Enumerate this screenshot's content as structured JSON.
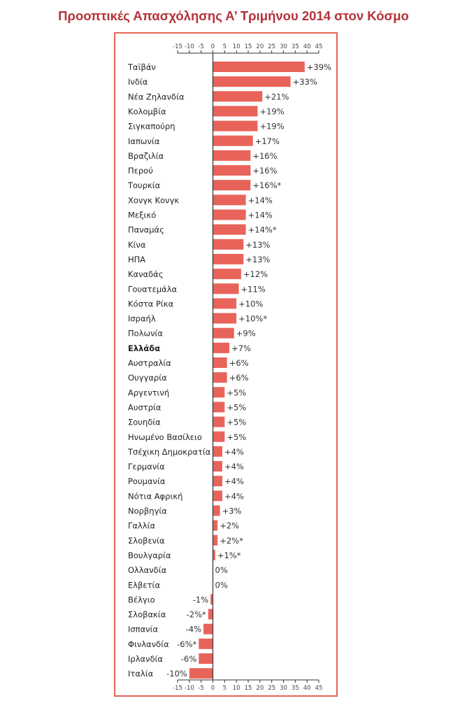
{
  "title": "Προοπτικές Απασχόλησης Α’ Τριμήνου 2014 στον Κόσμο",
  "colors": {
    "accent": "#b5323a",
    "bar": "#e8645a",
    "axis": "#333333",
    "frame": "#e36555"
  },
  "chart_data": {
    "type": "bar",
    "orientation": "horizontal",
    "title": "",
    "xlabel": "",
    "ylabel": "",
    "xlim": [
      -15,
      45
    ],
    "xticks": [
      -15,
      -10,
      -5,
      0,
      5,
      10,
      15,
      20,
      25,
      30,
      35,
      40,
      45
    ],
    "axis_labels_top_and_bottom": true,
    "grid": false,
    "legend": "none",
    "highlighted_category": "Ελλάδα",
    "categories": [
      "Ταϊβάν",
      "Ινδία",
      "Νέα Ζηλανδία",
      "Κολομβία",
      "Σιγκαπούρη",
      "Ιαπωνία",
      "Βραζιλία",
      "Περού",
      "Τουρκία",
      "Χονγκ Κονγκ",
      "Μεξικό",
      "Παναμάς",
      "Κίνα",
      "ΗΠΑ",
      "Καναδάς",
      "Γουατεμάλα",
      "Κόστα Ρίκα",
      "Ισραήλ",
      "Πολωνία",
      "Ελλάδα",
      "Αυστραλία",
      "Ουγγαρία",
      "Αργεντινή",
      "Αυστρία",
      "Σουηδία",
      "Ηνωμένο Βασίλειο",
      "Τσέχικη Δημοκρατία",
      "Γερμανία",
      "Ρουμανία",
      "Νότια Αφρική",
      "Νορβηγία",
      "Γαλλία",
      "Σλοβενία",
      "Βουλγαρία",
      "Ολλανδία",
      "Ελβετία",
      "Βέλγιο",
      "Σλοβακία",
      "Ισπανία",
      "Φινλανδία",
      "Ιρλανδία",
      "Ιταλία"
    ],
    "values": [
      39,
      33,
      21,
      19,
      19,
      17,
      16,
      16,
      16,
      14,
      14,
      14,
      13,
      13,
      12,
      11,
      10,
      10,
      9,
      7,
      6,
      6,
      5,
      5,
      5,
      5,
      4,
      4,
      4,
      4,
      3,
      2,
      2,
      1,
      0,
      0,
      -1,
      -2,
      -4,
      -6,
      -6,
      -10
    ],
    "value_labels": [
      "+39%",
      "+33%",
      "+21%",
      "+19%",
      "+19%",
      "+17%",
      "+16%",
      "+16%",
      "+16%*",
      "+14%",
      "+14%",
      "+14%*",
      "+13%",
      "+13%",
      "+12%",
      "+11%",
      "+10%",
      "+10%*",
      "+9%",
      "+7%",
      "+6%",
      "+6%",
      "+5%",
      "+5%",
      "+5%",
      "+5%",
      "+4%",
      "+4%",
      "+4%",
      "+4%",
      "+3%",
      "+2%",
      "+2%*",
      "+1%*",
      "0%",
      "0%",
      "-1%",
      "-2%*",
      "-4%",
      "-6%*",
      "-6%",
      "-10%"
    ]
  }
}
